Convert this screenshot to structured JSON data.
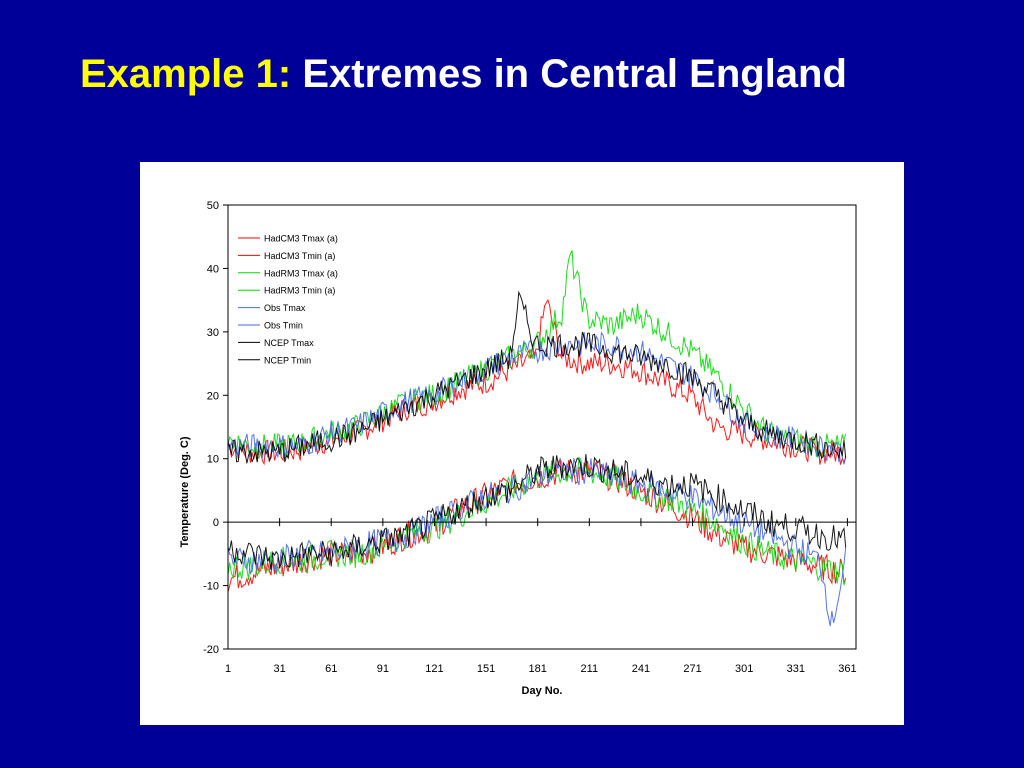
{
  "slide": {
    "title_prefix": "Example 1:",
    "title_rest": " Extremes in Central England",
    "prefix_color": "#ffff00",
    "title_color": "#ffffff",
    "background": "#000099"
  },
  "chart_data": {
    "type": "line",
    "title": "",
    "xlabel": "Day No.",
    "ylabel": "Temperature (Deg. C)",
    "xlim": [
      1,
      366
    ],
    "ylim": [
      -20,
      50
    ],
    "x_ticks": [
      1,
      31,
      61,
      91,
      121,
      151,
      181,
      211,
      241,
      271,
      301,
      331,
      361
    ],
    "y_ticks": [
      -20,
      -10,
      0,
      10,
      20,
      30,
      40,
      50
    ],
    "grid": false,
    "legend_position": "top-left",
    "series": [
      {
        "name": "HadCM3 Tmax (a)",
        "color": "#ff0000",
        "points": [
          [
            1,
            12
          ],
          [
            15,
            11
          ],
          [
            30,
            11
          ],
          [
            45,
            11.5
          ],
          [
            60,
            13
          ],
          [
            75,
            14
          ],
          [
            90,
            16
          ],
          [
            105,
            18
          ],
          [
            120,
            19
          ],
          [
            135,
            21
          ],
          [
            150,
            22
          ],
          [
            165,
            24
          ],
          [
            180,
            26
          ],
          [
            186,
            35
          ],
          [
            195,
            26
          ],
          [
            210,
            25
          ],
          [
            225,
            25
          ],
          [
            240,
            24
          ],
          [
            255,
            22
          ],
          [
            270,
            20
          ],
          [
            285,
            15
          ],
          [
            300,
            14
          ],
          [
            315,
            13
          ],
          [
            330,
            12
          ],
          [
            345,
            11
          ],
          [
            360,
            11
          ]
        ]
      },
      {
        "name": "HadCM3 Tmin (a)",
        "color": "#ff0000",
        "points": [
          [
            1,
            -9
          ],
          [
            15,
            -8
          ],
          [
            30,
            -7
          ],
          [
            45,
            -6
          ],
          [
            60,
            -5
          ],
          [
            75,
            -5
          ],
          [
            90,
            -4
          ],
          [
            105,
            -2
          ],
          [
            120,
            -1
          ],
          [
            135,
            2
          ],
          [
            150,
            4
          ],
          [
            165,
            6
          ],
          [
            180,
            7
          ],
          [
            195,
            8
          ],
          [
            210,
            8
          ],
          [
            225,
            7
          ],
          [
            240,
            5
          ],
          [
            255,
            3
          ],
          [
            270,
            1
          ],
          [
            285,
            -2
          ],
          [
            300,
            -4
          ],
          [
            315,
            -5
          ],
          [
            330,
            -6
          ],
          [
            345,
            -7
          ],
          [
            360,
            -8
          ]
        ]
      },
      {
        "name": "HadRM3 Tmax (a)",
        "color": "#00dd00",
        "points": [
          [
            1,
            13
          ],
          [
            15,
            12
          ],
          [
            30,
            12
          ],
          [
            45,
            12.5
          ],
          [
            60,
            14
          ],
          [
            75,
            15
          ],
          [
            90,
            17
          ],
          [
            105,
            19
          ],
          [
            120,
            20
          ],
          [
            135,
            22
          ],
          [
            150,
            24
          ],
          [
            165,
            26
          ],
          [
            180,
            28
          ],
          [
            195,
            33
          ],
          [
            200,
            42
          ],
          [
            210,
            32
          ],
          [
            225,
            31
          ],
          [
            240,
            33
          ],
          [
            255,
            30
          ],
          [
            270,
            27
          ],
          [
            285,
            23
          ],
          [
            300,
            18
          ],
          [
            315,
            14
          ],
          [
            330,
            13
          ],
          [
            345,
            12
          ],
          [
            360,
            12
          ]
        ]
      },
      {
        "name": "HadRM3 Tmin (a)",
        "color": "#00dd00",
        "points": [
          [
            1,
            -7
          ],
          [
            15,
            -7
          ],
          [
            30,
            -6
          ],
          [
            45,
            -6
          ],
          [
            60,
            -5
          ],
          [
            75,
            -5
          ],
          [
            90,
            -4
          ],
          [
            105,
            -2
          ],
          [
            120,
            -1
          ],
          [
            135,
            1
          ],
          [
            150,
            3
          ],
          [
            165,
            5
          ],
          [
            180,
            7
          ],
          [
            195,
            8
          ],
          [
            210,
            8
          ],
          [
            225,
            7
          ],
          [
            240,
            5
          ],
          [
            255,
            4
          ],
          [
            270,
            2
          ],
          [
            285,
            0
          ],
          [
            300,
            -3
          ],
          [
            315,
            -5
          ],
          [
            330,
            -6
          ],
          [
            345,
            -7
          ],
          [
            360,
            -8
          ]
        ]
      },
      {
        "name": "Obs Tmax",
        "color": "#4466ee",
        "points": [
          [
            1,
            12
          ],
          [
            15,
            12
          ],
          [
            30,
            12
          ],
          [
            45,
            12
          ],
          [
            60,
            14
          ],
          [
            75,
            15
          ],
          [
            90,
            17
          ],
          [
            105,
            19
          ],
          [
            120,
            20
          ],
          [
            135,
            22
          ],
          [
            150,
            24
          ],
          [
            165,
            26
          ],
          [
            180,
            27
          ],
          [
            195,
            28
          ],
          [
            210,
            28
          ],
          [
            225,
            28
          ],
          [
            240,
            27
          ],
          [
            255,
            25
          ],
          [
            270,
            23
          ],
          [
            285,
            20
          ],
          [
            300,
            16
          ],
          [
            315,
            14
          ],
          [
            330,
            13
          ],
          [
            345,
            12
          ],
          [
            360,
            11
          ]
        ]
      },
      {
        "name": "Obs Tmin",
        "color": "#4466ee",
        "points": [
          [
            1,
            -6
          ],
          [
            15,
            -6
          ],
          [
            30,
            -6
          ],
          [
            45,
            -5
          ],
          [
            60,
            -5
          ],
          [
            75,
            -4
          ],
          [
            90,
            -3
          ],
          [
            105,
            -2
          ],
          [
            120,
            0
          ],
          [
            135,
            2
          ],
          [
            150,
            4
          ],
          [
            165,
            5
          ],
          [
            180,
            7
          ],
          [
            195,
            8
          ],
          [
            210,
            8
          ],
          [
            225,
            7
          ],
          [
            240,
            6
          ],
          [
            255,
            5
          ],
          [
            270,
            4
          ],
          [
            285,
            2
          ],
          [
            300,
            0
          ],
          [
            315,
            -2
          ],
          [
            330,
            -4
          ],
          [
            345,
            -6
          ],
          [
            352,
            -16
          ],
          [
            360,
            -6
          ]
        ]
      },
      {
        "name": "NCEP Tmax",
        "color": "#000000",
        "points": [
          [
            1,
            11
          ],
          [
            15,
            11
          ],
          [
            30,
            11
          ],
          [
            45,
            12
          ],
          [
            60,
            13
          ],
          [
            75,
            14
          ],
          [
            90,
            16
          ],
          [
            105,
            18
          ],
          [
            120,
            20
          ],
          [
            135,
            22
          ],
          [
            150,
            24
          ],
          [
            165,
            26
          ],
          [
            170,
            35
          ],
          [
            180,
            28
          ],
          [
            195,
            28
          ],
          [
            210,
            28
          ],
          [
            225,
            27
          ],
          [
            240,
            26
          ],
          [
            255,
            25
          ],
          [
            270,
            23
          ],
          [
            285,
            20
          ],
          [
            300,
            16
          ],
          [
            315,
            14
          ],
          [
            330,
            13
          ],
          [
            345,
            12
          ],
          [
            360,
            11
          ]
        ]
      },
      {
        "name": "NCEP Tmin",
        "color": "#000000",
        "points": [
          [
            1,
            -4
          ],
          [
            15,
            -5
          ],
          [
            30,
            -6
          ],
          [
            45,
            -5
          ],
          [
            60,
            -5
          ],
          [
            75,
            -4
          ],
          [
            90,
            -3
          ],
          [
            105,
            -2
          ],
          [
            120,
            0
          ],
          [
            135,
            2
          ],
          [
            150,
            4
          ],
          [
            165,
            5
          ],
          [
            180,
            8
          ],
          [
            195,
            9
          ],
          [
            210,
            9
          ],
          [
            225,
            8
          ],
          [
            240,
            7
          ],
          [
            255,
            6
          ],
          [
            270,
            6
          ],
          [
            285,
            4
          ],
          [
            300,
            2
          ],
          [
            315,
            0
          ],
          [
            330,
            -1
          ],
          [
            345,
            -2
          ],
          [
            360,
            -3
          ]
        ]
      }
    ]
  }
}
